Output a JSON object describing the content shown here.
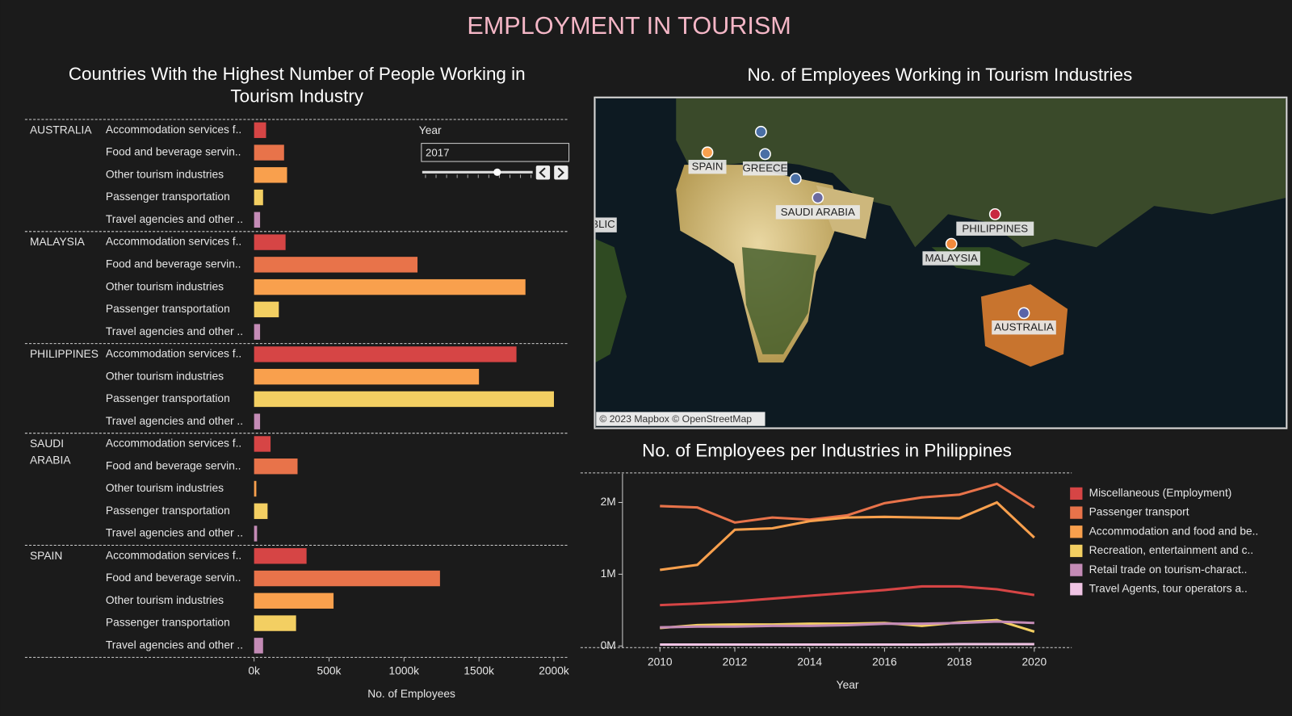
{
  "dashboard_title": "EMPLOYMENT IN TOURISM",
  "filter": {
    "label": "Year",
    "value": "2017"
  },
  "map": {
    "title": "No. of Employees Working in Tourism Industries",
    "credit": "© 2023 Mapbox © OpenStreetMap",
    "partial_label": "BLIC",
    "points": [
      {
        "label": "SPAIN",
        "color": "#f9a04d"
      },
      {
        "label": "GREECE",
        "color": "#4a6fa5"
      },
      {
        "label": null,
        "color": "#4a6fa5"
      },
      {
        "label": null,
        "color": "#4a6fa5"
      },
      {
        "label": "SAUDI ARABIA",
        "color": "#6b6aa0"
      },
      {
        "label": "PHILIPPINES",
        "color": "#c8283f"
      },
      {
        "label": "MALAYSIA",
        "color": "#f28a3c"
      },
      {
        "label": "AUSTRALIA",
        "color": "#5b64a8"
      }
    ]
  },
  "chart_data": [
    {
      "type": "bar",
      "orientation": "horizontal",
      "title": "Countries With the Highest Number of People Working in Tourism Industry",
      "x_label": "No. of Employees",
      "xlim": [
        0,
        2100000
      ],
      "xticks": [
        {
          "value": 0,
          "label": "0k"
        },
        {
          "value": 500000,
          "label": "500k"
        },
        {
          "value": 1000000,
          "label": "1000k"
        },
        {
          "value": 1500000,
          "label": "1500k"
        },
        {
          "value": 2000000,
          "label": "2000k"
        }
      ],
      "groups": [
        {
          "name": "AUSTRALIA",
          "categories": [
            "Accommodation services f..",
            "Food and beverage servin..",
            "Other tourism industries",
            "Passenger transportation",
            "Travel agencies and other .."
          ],
          "colors": [
            "#d64545",
            "#e8734a",
            "#f9a04d",
            "#f3cf62",
            "#c48bb6"
          ],
          "values": [
            80000,
            200000,
            220000,
            60000,
            40000
          ]
        },
        {
          "name": "MALAYSIA",
          "categories": [
            "Accommodation services f..",
            "Food and beverage servin..",
            "Other tourism industries",
            "Passenger transportation",
            "Travel agencies and other .."
          ],
          "colors": [
            "#d64545",
            "#e8734a",
            "#f9a04d",
            "#f3cf62",
            "#c48bb6"
          ],
          "values": [
            210000,
            1090000,
            1810000,
            165000,
            40000
          ]
        },
        {
          "name": "PHILIPPINES",
          "categories": [
            "Accommodation services f..",
            "Other tourism industries",
            "Passenger transportation",
            "Travel agencies and other .."
          ],
          "colors": [
            "#d64545",
            "#f9a04d",
            "#f3cf62",
            "#c48bb6"
          ],
          "values": [
            1750000,
            1500000,
            2000000,
            40000
          ]
        },
        {
          "name": "SAUDI ARABIA",
          "categories": [
            "Accommodation services f..",
            "Food and beverage servin..",
            "Other tourism industries",
            "Passenger transportation",
            "Travel agencies and other .."
          ],
          "colors": [
            "#d64545",
            "#e8734a",
            "#f9a04d",
            "#f3cf62",
            "#c48bb6"
          ],
          "values": [
            110000,
            290000,
            15000,
            90000,
            20000
          ]
        },
        {
          "name": "SPAIN",
          "categories": [
            "Accommodation services f..",
            "Food and beverage servin..",
            "Other tourism industries",
            "Passenger transportation",
            "Travel agencies and other .."
          ],
          "colors": [
            "#d64545",
            "#e8734a",
            "#f9a04d",
            "#f3cf62",
            "#c48bb6"
          ],
          "values": [
            350000,
            1240000,
            530000,
            280000,
            60000
          ]
        }
      ]
    },
    {
      "type": "line",
      "title": "No. of Employees per Industries in Philippines",
      "x_label": "Year",
      "x": [
        2010,
        2011,
        2012,
        2013,
        2014,
        2015,
        2016,
        2017,
        2018,
        2019,
        2020
      ],
      "xlim": [
        2009,
        2021
      ],
      "xticks": [
        2010,
        2012,
        2014,
        2016,
        2018,
        2020
      ],
      "ylim": [
        0,
        2400000
      ],
      "yticks": [
        {
          "value": 0,
          "label": "0M"
        },
        {
          "value": 1000000,
          "label": "1M"
        },
        {
          "value": 2000000,
          "label": "2M"
        }
      ],
      "series": [
        {
          "name": "Miscellaneous (Employment)",
          "color": "#d64545",
          "values": [
            570000,
            590000,
            620000,
            660000,
            700000,
            740000,
            780000,
            830000,
            830000,
            790000,
            710000
          ]
        },
        {
          "name": "Passenger transport",
          "color": "#e8734a",
          "values": [
            1950000,
            1930000,
            1720000,
            1790000,
            1760000,
            1820000,
            1990000,
            2070000,
            2110000,
            2260000,
            1930000
          ]
        },
        {
          "name": "Accommodation and food and be..",
          "color": "#f9a04d",
          "values": [
            1060000,
            1130000,
            1620000,
            1640000,
            1740000,
            1790000,
            1800000,
            1790000,
            1780000,
            2000000,
            1510000
          ]
        },
        {
          "name": "Recreation, entertainment and c..",
          "color": "#f3cf62",
          "values": [
            250000,
            290000,
            300000,
            300000,
            310000,
            310000,
            320000,
            280000,
            330000,
            360000,
            200000
          ]
        },
        {
          "name": "Retail trade on tourism-charact..",
          "color": "#c48bb6",
          "values": [
            260000,
            270000,
            270000,
            280000,
            280000,
            290000,
            310000,
            310000,
            320000,
            340000,
            320000
          ]
        },
        {
          "name": "Travel Agents, tour operators a..",
          "color": "#f0c4e4",
          "values": [
            20000,
            20000,
            20000,
            20000,
            20000,
            20000,
            20000,
            20000,
            25000,
            25000,
            25000
          ]
        }
      ]
    }
  ]
}
